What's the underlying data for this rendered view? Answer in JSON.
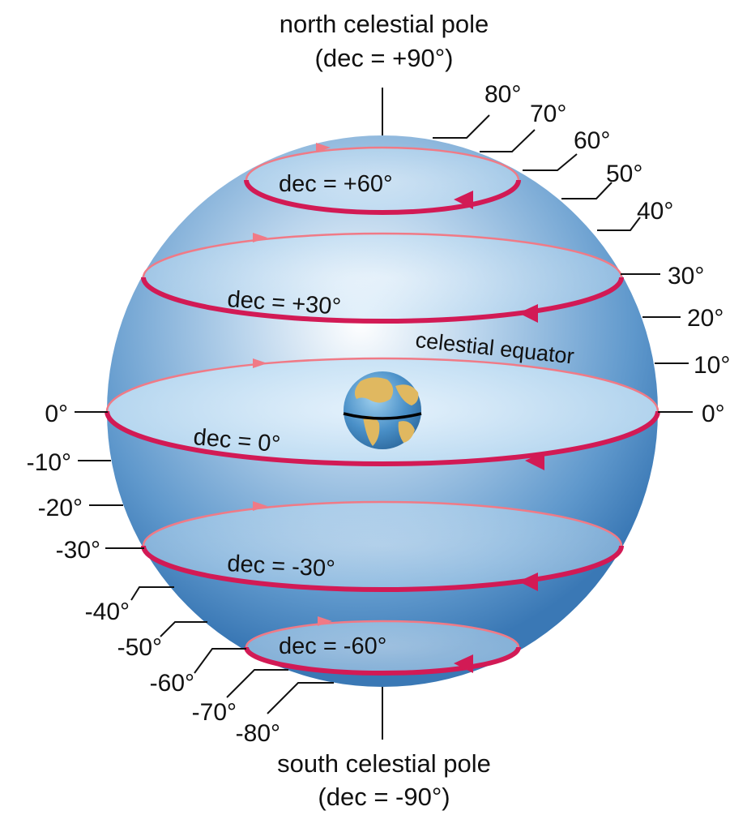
{
  "north_pole": {
    "line1": "north celestial pole",
    "line2": "(dec = +90°)"
  },
  "south_pole": {
    "line1": "south celestial pole",
    "line2": "(dec = -90°)"
  },
  "equator_label": "celestial equator",
  "dec_labels": {
    "p60": "dec = +60°",
    "p30": "dec = +30°",
    "zero": "dec = 0°",
    "m30": "dec = -30°",
    "m60": "dec = -60°"
  },
  "right_labels": {
    "d80": "80°",
    "d70": "70°",
    "d60": "60°",
    "d50": "50°",
    "d40": "40°",
    "d30": "30°",
    "d20": "20°",
    "d10": "10°",
    "d0": "0°"
  },
  "left_labels": {
    "d0": "0°",
    "m10": "-10°",
    "m20": "-20°",
    "m30": "-30°",
    "m40": "-40°",
    "m50": "-50°",
    "m60": "-60°",
    "m70": "-70°",
    "m80": "-80°"
  },
  "colors": {
    "sphere_light": "#ffffff",
    "sphere_mid": "#a9c8e6",
    "sphere_dark": "#3a78b5",
    "ring_front": "#d21a55",
    "ring_back": "#f07a86",
    "ring_fill": "#d9ecfa",
    "ocean": "#4a90c8",
    "land": "#e0b860",
    "ink": "#111111"
  },
  "icons": {
    "earth": "earth-globe-icon"
  }
}
